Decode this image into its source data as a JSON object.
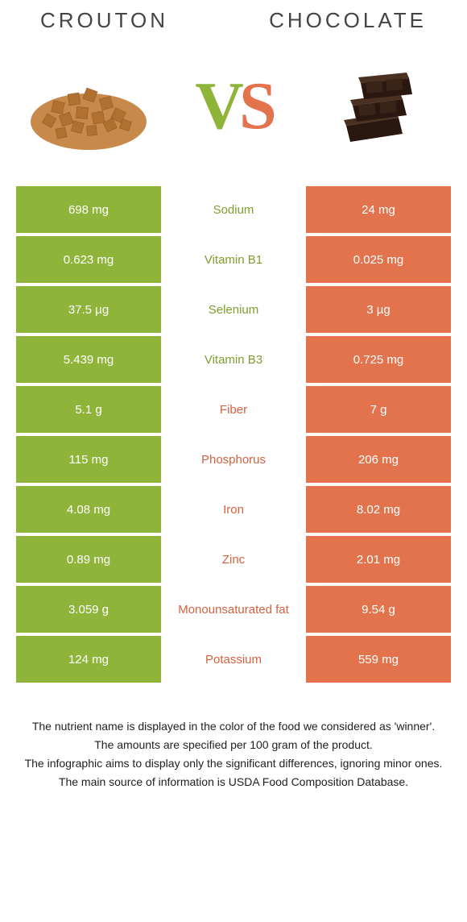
{
  "colors": {
    "left": "#8fb43a",
    "right": "#e2734d",
    "left_text": "#7f9e2e",
    "right_text": "#d5613e",
    "bg": "#ffffff"
  },
  "header": {
    "left": "CROUTON",
    "right": "CHOCOLATE"
  },
  "vs": {
    "v": "V",
    "s": "S"
  },
  "rows": [
    {
      "left": "698 mg",
      "label": "Sodium",
      "right": "24 mg",
      "winner": "left"
    },
    {
      "left": "0.623 mg",
      "label": "Vitamin B1",
      "right": "0.025 mg",
      "winner": "left"
    },
    {
      "left": "37.5 µg",
      "label": "Selenium",
      "right": "3 µg",
      "winner": "left"
    },
    {
      "left": "5.439 mg",
      "label": "Vitamin B3",
      "right": "0.725 mg",
      "winner": "left"
    },
    {
      "left": "5.1 g",
      "label": "Fiber",
      "right": "7 g",
      "winner": "right"
    },
    {
      "left": "115 mg",
      "label": "Phosphorus",
      "right": "206 mg",
      "winner": "right"
    },
    {
      "left": "4.08 mg",
      "label": "Iron",
      "right": "8.02 mg",
      "winner": "right"
    },
    {
      "left": "0.89 mg",
      "label": "Zinc",
      "right": "2.01 mg",
      "winner": "right"
    },
    {
      "left": "3.059 g",
      "label": "Monounsaturated fat",
      "right": "9.54 g",
      "winner": "right"
    },
    {
      "left": "124 mg",
      "label": "Potassium",
      "right": "559 mg",
      "winner": "right"
    }
  ],
  "footer": [
    "The nutrient name is displayed in the color of the food we considered as 'winner'.",
    "The amounts are specified per 100 gram of the product.",
    "The infographic aims to display only the significant differences, ignoring minor ones.",
    "The main source of information is USDA Food Composition Database."
  ]
}
